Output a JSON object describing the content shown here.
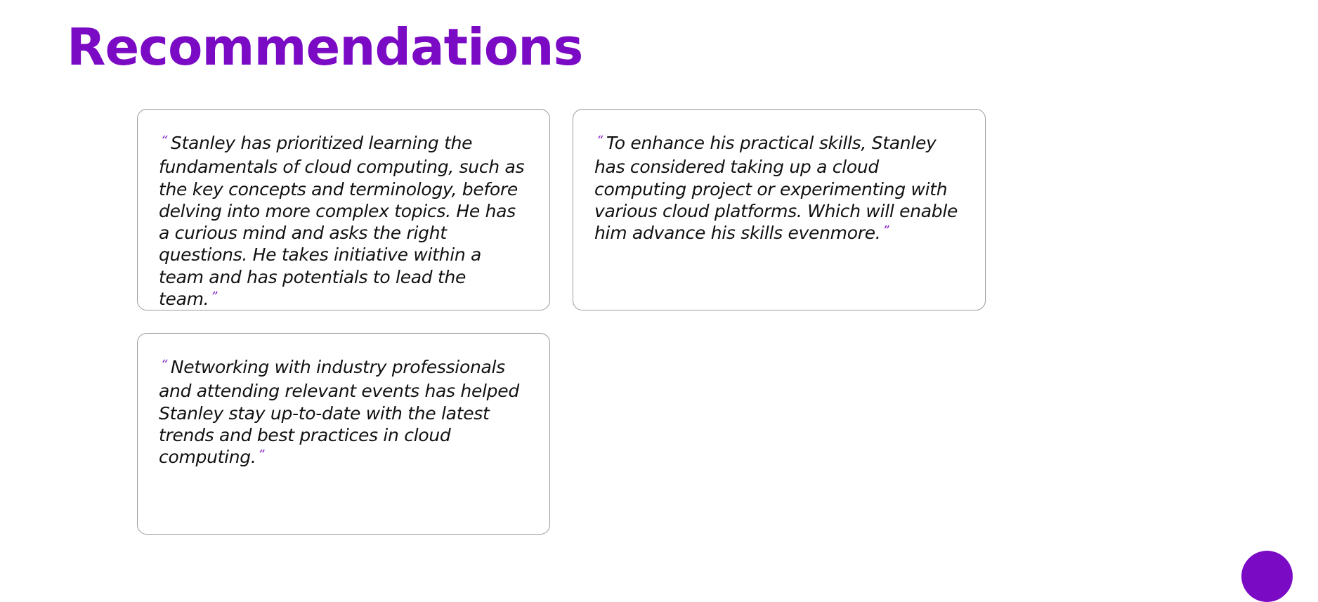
{
  "page": {
    "title": "Recommendations"
  },
  "recommendations": [
    {
      "open_quote": "“",
      "text": "Stanley has prioritized learning the fundamentals of cloud computing, such as the key concepts and terminology, before delving into more complex topics. He has a curious mind and asks the right questions. He takes initiative within a team and has potentials to lead the team.",
      "close_quote": "”"
    },
    {
      "open_quote": "“",
      "text": "To enhance his practical skills, Stanley has considered taking up a cloud computing project or experimenting with various cloud platforms. Which will enable him advance his skills evenmore.",
      "close_quote": "”"
    },
    {
      "open_quote": "“",
      "text": "Networking with industry professionals and attending relevant events has helped Stanley stay up-to-date with the latest trends and best practices in cloud computing.",
      "close_quote": "”"
    }
  ],
  "colors": {
    "accent": "#7b0ac5",
    "card_border": "#9a9a9a",
    "text": "#111111",
    "background": "#ffffff"
  },
  "icons": {
    "fab": "purple-circle-button"
  }
}
